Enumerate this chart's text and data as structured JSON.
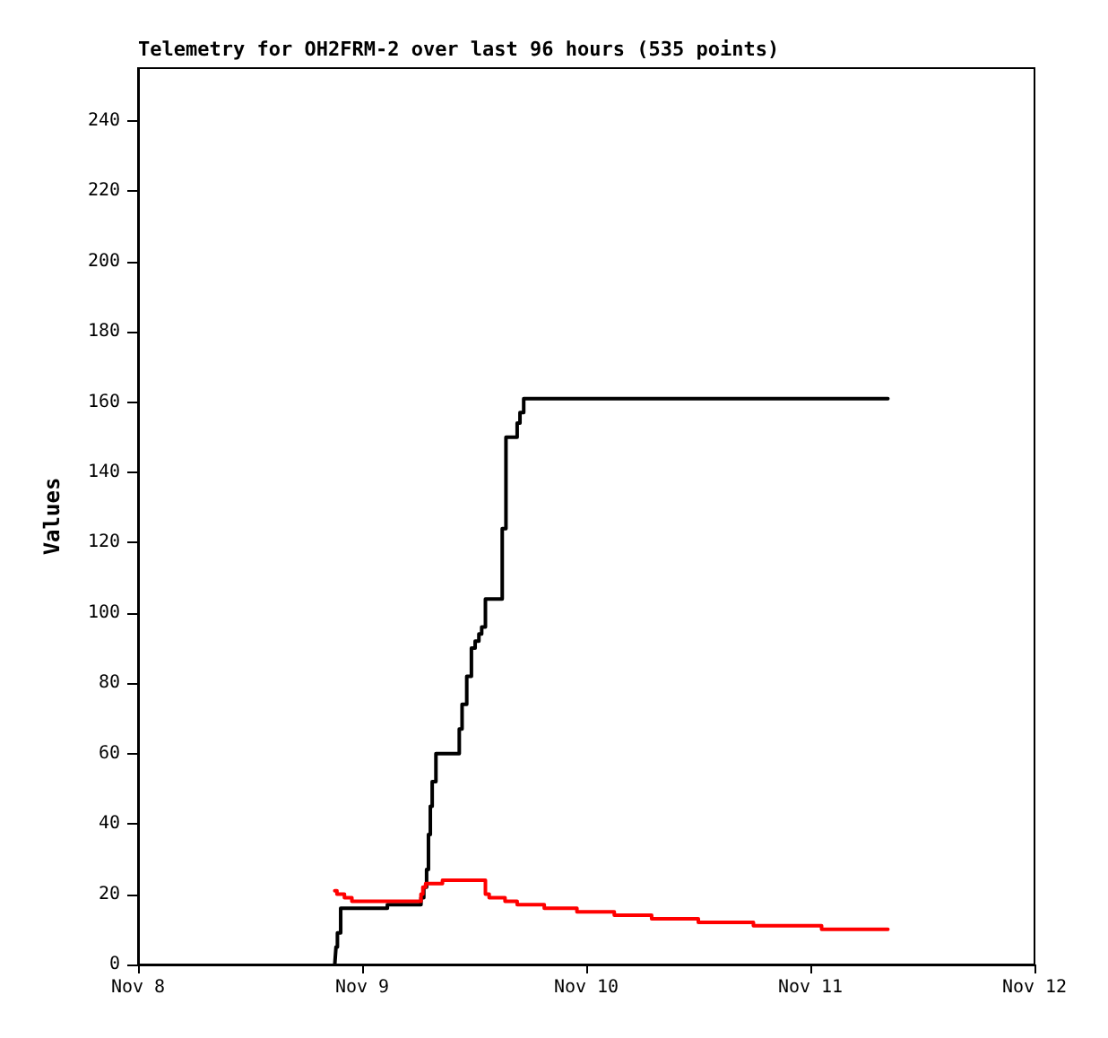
{
  "chart_data": {
    "type": "step",
    "title": "Telemetry for OH2FRM-2 over last 96 hours (535 points)",
    "ylabel": "Values",
    "xlim": [
      "--11-08",
      "--11-12"
    ],
    "xticks": [
      {
        "value": "--11-08",
        "label": "Nov 8"
      },
      {
        "value": "--11-09",
        "label": "Nov 9"
      },
      {
        "value": "--11-10",
        "label": "Nov 10"
      },
      {
        "value": "--11-11",
        "label": "Nov 11"
      },
      {
        "value": "--11-12",
        "label": "Nov 12"
      }
    ],
    "ylim": [
      0,
      255
    ],
    "yticks": [
      0,
      20,
      40,
      60,
      80,
      100,
      120,
      140,
      160,
      180,
      200,
      220,
      240
    ],
    "grid": false,
    "marker": "none",
    "line_style": "solid",
    "series": [
      {
        "color": "#000000",
        "x": [
          "--11-08T21:04",
          "--11-08T21:12",
          "--11-08T21:21",
          "--11-08T21:42",
          "--11-09T02:42",
          "--11-09T06:18",
          "--11-09T06:36",
          "--11-09T06:54",
          "--11-09T07:06",
          "--11-09T07:18",
          "--11-09T07:30",
          "--11-09T07:54",
          "--11-09T10:24",
          "--11-09T10:42",
          "--11-09T11:12",
          "--11-09T11:42",
          "--11-09T12:06",
          "--11-09T12:30",
          "--11-09T12:48",
          "--11-09T13:12",
          "--11-09T15:00",
          "--11-09T15:24",
          "--11-09T16:36",
          "--11-09T16:54",
          "--11-09T17:18",
          "--11-11T08:18"
        ],
        "values": [
          0,
          5,
          9,
          16,
          17,
          19,
          22,
          27,
          37,
          45,
          52,
          60,
          67,
          74,
          82,
          90,
          92,
          94,
          96,
          104,
          124,
          150,
          154,
          157,
          161,
          161
        ]
      },
      {
        "color": "#ff0000",
        "x": [
          "--11-08T21:04",
          "--11-08T21:18",
          "--11-08T22:06",
          "--11-08T22:54",
          "--11-09T06:18",
          "--11-09T06:30",
          "--11-09T06:48",
          "--11-09T08:36",
          "--11-09T13:12",
          "--11-09T13:36",
          "--11-09T15:18",
          "--11-09T16:36",
          "--11-09T19:30",
          "--11-09T23:00",
          "--11-10T03:00",
          "--11-10T07:00",
          "--11-10T12:00",
          "--11-10T17:54",
          "--11-11T01:12",
          "--11-11T08:18"
        ],
        "values": [
          21,
          20,
          19,
          18,
          20,
          22,
          23,
          24,
          20,
          19,
          18,
          17,
          16,
          15,
          14,
          13,
          12,
          11,
          10,
          10
        ]
      }
    ]
  }
}
